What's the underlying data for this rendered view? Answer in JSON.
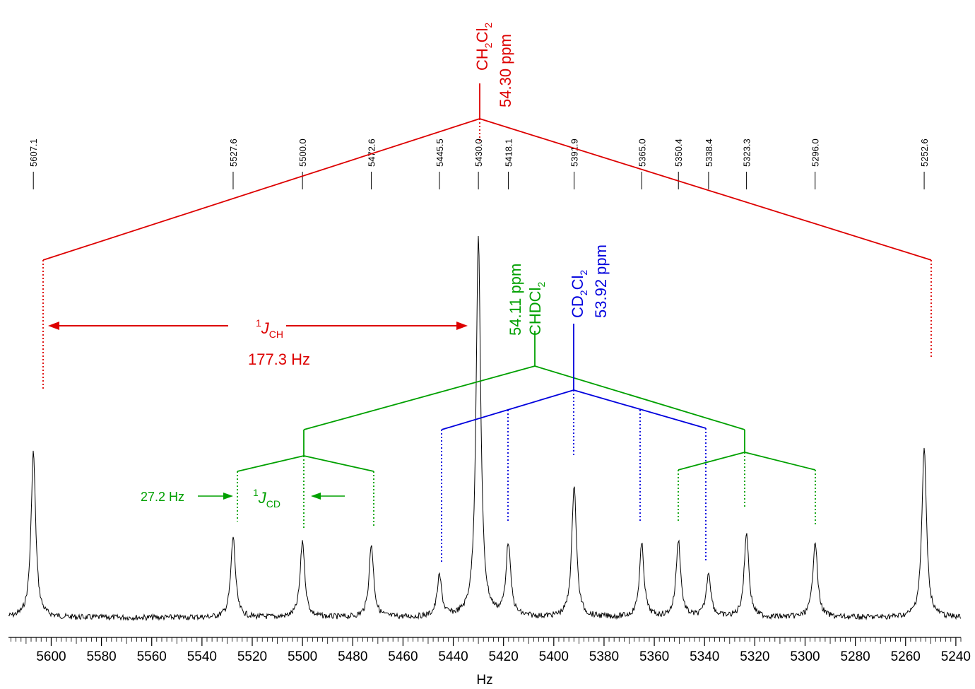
{
  "chart_data": {
    "type": "line",
    "title": "",
    "xlabel": "Hz",
    "ylabel": "",
    "xlim": [
      5617,
      5238
    ],
    "x_reversed": true,
    "x_ticks": [
      5600,
      5580,
      5560,
      5540,
      5520,
      5500,
      5480,
      5460,
      5440,
      5420,
      5400,
      5380,
      5360,
      5340,
      5320,
      5300,
      5280,
      5260,
      5240
    ],
    "colors": {
      "ch2cl2": "#dd0000",
      "chdcl2": "#00a000",
      "cd2cl2": "#0000dd",
      "spectrum": "#000000"
    },
    "peaks": [
      {
        "position": 5607.1,
        "height": 0.41,
        "label": "5607.1"
      },
      {
        "position": 5527.6,
        "height": 0.2,
        "label": "5527.6"
      },
      {
        "position": 5500.0,
        "height": 0.19,
        "label": "5500.0"
      },
      {
        "position": 5472.6,
        "height": 0.18,
        "label": "5472.6"
      },
      {
        "position": 5445.5,
        "height": 0.1,
        "label": "5445.5"
      },
      {
        "position": 5430.0,
        "height": 0.94,
        "label": "5430.0"
      },
      {
        "position": 5418.1,
        "height": 0.18,
        "label": "5418.1"
      },
      {
        "position": 5391.9,
        "height": 0.33,
        "label": "5391.9"
      },
      {
        "position": 5365.0,
        "height": 0.18,
        "label": "5365.0"
      },
      {
        "position": 5350.4,
        "height": 0.19,
        "label": "5350.4"
      },
      {
        "position": 5338.4,
        "height": 0.11,
        "label": "5338.4"
      },
      {
        "position": 5323.3,
        "height": 0.21,
        "label": "5323.3"
      },
      {
        "position": 5296.0,
        "height": 0.19,
        "label": "5296.0"
      },
      {
        "position": 5252.6,
        "height": 0.42,
        "label": "5252.6"
      }
    ],
    "annotations": {
      "ch2cl2": {
        "formula": "CH",
        "sub1": "2",
        "formula2": "Cl",
        "sub2": "2",
        "shift": "54.30 ppm"
      },
      "chdcl2": {
        "formula": "CHDCl",
        "sub1": "2",
        "shift": "54.11 ppm"
      },
      "cd2cl2": {
        "formula": "CD",
        "sub1": "2",
        "formula2": "Cl",
        "sub2": "2",
        "shift": "53.92 ppm"
      },
      "jch": {
        "sup": "1",
        "j": "J",
        "sub": "CH",
        "value": "177.3 Hz"
      },
      "jcd": {
        "sup": "1",
        "j": "J",
        "sub": "CD",
        "value": "27.2 Hz"
      }
    }
  }
}
